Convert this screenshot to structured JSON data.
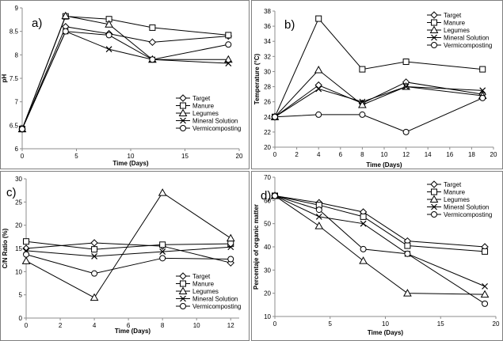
{
  "chart_data": [
    {
      "type": "line",
      "panel_label": "a)",
      "xlabel": "Time (Days)",
      "ylabel": "pH",
      "xlim": [
        0,
        20
      ],
      "ylim": [
        6,
        9
      ],
      "xticks": [
        0,
        5,
        10,
        15,
        20
      ],
      "yticks": [
        6,
        6.5,
        7,
        7.5,
        8,
        8.5,
        9
      ],
      "legend": "bottom-right",
      "grid": false,
      "series": [
        {
          "name": "Target",
          "marker": "diamond",
          "x": [
            0,
            4,
            8,
            12,
            19
          ],
          "y": [
            6.42,
            8.6,
            8.45,
            8.27,
            8.4
          ]
        },
        {
          "name": "Manure",
          "marker": "square",
          "x": [
            0,
            4,
            8,
            12,
            19
          ],
          "y": [
            6.42,
            8.82,
            8.76,
            8.58,
            8.42
          ]
        },
        {
          "name": "Legumes",
          "marker": "triangle",
          "x": [
            0,
            4,
            8,
            12,
            19
          ],
          "y": [
            6.42,
            8.83,
            8.65,
            7.9,
            7.9
          ]
        },
        {
          "name": "Mineral Solution",
          "marker": "x",
          "x": [
            0,
            4,
            8,
            12,
            19
          ],
          "y": [
            6.42,
            8.5,
            8.12,
            7.9,
            7.82
          ]
        },
        {
          "name": "Vermicomposting",
          "marker": "circle",
          "x": [
            0,
            4,
            8,
            12,
            19
          ],
          "y": [
            6.42,
            8.5,
            8.42,
            7.9,
            8.22
          ]
        }
      ]
    },
    {
      "type": "line",
      "panel_label": "b)",
      "xlabel": "Time (Days)",
      "ylabel": "Temperature (°C)",
      "xlim": [
        0,
        20
      ],
      "ylim": [
        20,
        38
      ],
      "xticks": [
        0,
        2,
        4,
        6,
        8,
        10,
        12,
        14,
        16,
        18,
        20
      ],
      "yticks": [
        20,
        22,
        24,
        26,
        28,
        30,
        32,
        34,
        36,
        38
      ],
      "legend": "top-right",
      "grid": false,
      "series": [
        {
          "name": "Target",
          "marker": "diamond",
          "x": [
            0,
            4,
            8,
            12,
            19
          ],
          "y": [
            24,
            28.2,
            25.8,
            28.6,
            27
          ]
        },
        {
          "name": "Manure",
          "marker": "square",
          "x": [
            0,
            4,
            8,
            12,
            19
          ],
          "y": [
            24,
            37,
            30.3,
            31.3,
            30.3
          ]
        },
        {
          "name": "Legumes",
          "marker": "triangle",
          "x": [
            0,
            4,
            8,
            12,
            19
          ],
          "y": [
            24,
            30.2,
            25.6,
            28,
            26.8
          ]
        },
        {
          "name": "Mineral Solution",
          "marker": "x",
          "x": [
            0,
            4,
            8,
            12,
            19
          ],
          "y": [
            24,
            27.7,
            26,
            28,
            27.5
          ]
        },
        {
          "name": "Vermicomposting",
          "marker": "circle",
          "x": [
            0,
            4,
            8,
            12,
            19
          ],
          "y": [
            24,
            24.3,
            24.3,
            22,
            26.5
          ]
        }
      ]
    },
    {
      "type": "line",
      "panel_label": "c)",
      "xlabel": "Time (Days)",
      "ylabel": "C/N Ratio (%)",
      "xlim": [
        0,
        12.5
      ],
      "ylim": [
        0,
        30
      ],
      "xticks": [
        0,
        2,
        4,
        6,
        8,
        10,
        12
      ],
      "yticks": [
        0,
        5,
        10,
        15,
        20,
        25,
        30
      ],
      "legend": "bottom-right",
      "grid": false,
      "series": [
        {
          "name": "Target",
          "marker": "diamond",
          "x": [
            0,
            4,
            8,
            12
          ],
          "y": [
            15,
            16.2,
            15.5,
            11.9
          ]
        },
        {
          "name": "Manure",
          "marker": "square",
          "x": [
            0,
            4,
            8,
            12
          ],
          "y": [
            16.5,
            14.8,
            15.8,
            16
          ]
        },
        {
          "name": "Legumes",
          "marker": "triangle",
          "x": [
            0,
            4,
            8,
            12
          ],
          "y": [
            12.3,
            4.4,
            27,
            17.2
          ]
        },
        {
          "name": "Mineral Solution",
          "marker": "x",
          "x": [
            0,
            4,
            8,
            12
          ],
          "y": [
            14.5,
            13.3,
            14.3,
            15.3
          ]
        },
        {
          "name": "Vermicomposting",
          "marker": "circle",
          "x": [
            0,
            4,
            8,
            12
          ],
          "y": [
            13.7,
            9.6,
            12.9,
            12.7
          ]
        }
      ]
    },
    {
      "type": "line",
      "panel_label": "d)",
      "xlabel": "Time (Days)",
      "ylabel": "Percentaje of organic matter",
      "xlim": [
        0,
        20
      ],
      "ylim": [
        10,
        70
      ],
      "xticks": [
        0,
        5,
        10,
        15,
        20
      ],
      "yticks": [
        10,
        20,
        30,
        40,
        50,
        60,
        70
      ],
      "legend": "top-right",
      "grid": false,
      "series": [
        {
          "name": "Target",
          "marker": "diamond",
          "x": [
            0,
            4,
            8,
            12,
            19
          ],
          "y": [
            62,
            59,
            55,
            42.5,
            40
          ]
        },
        {
          "name": "Manure",
          "marker": "square",
          "x": [
            0,
            4,
            8,
            12,
            19
          ],
          "y": [
            62,
            58,
            53,
            40.5,
            38
          ]
        },
        {
          "name": "Legumes",
          "marker": "triangle",
          "x": [
            0,
            4,
            8,
            12,
            19
          ],
          "y": [
            62,
            49,
            34,
            20,
            19.5
          ]
        },
        {
          "name": "Mineral Solution",
          "marker": "x",
          "x": [
            0,
            4,
            8,
            12,
            19
          ],
          "y": [
            62,
            53,
            50,
            37,
            23
          ]
        },
        {
          "name": "Vermicomposting",
          "marker": "circle",
          "x": [
            0,
            4,
            8,
            12,
            19
          ],
          "y": [
            62,
            56,
            39,
            37,
            15.5
          ]
        }
      ]
    }
  ]
}
